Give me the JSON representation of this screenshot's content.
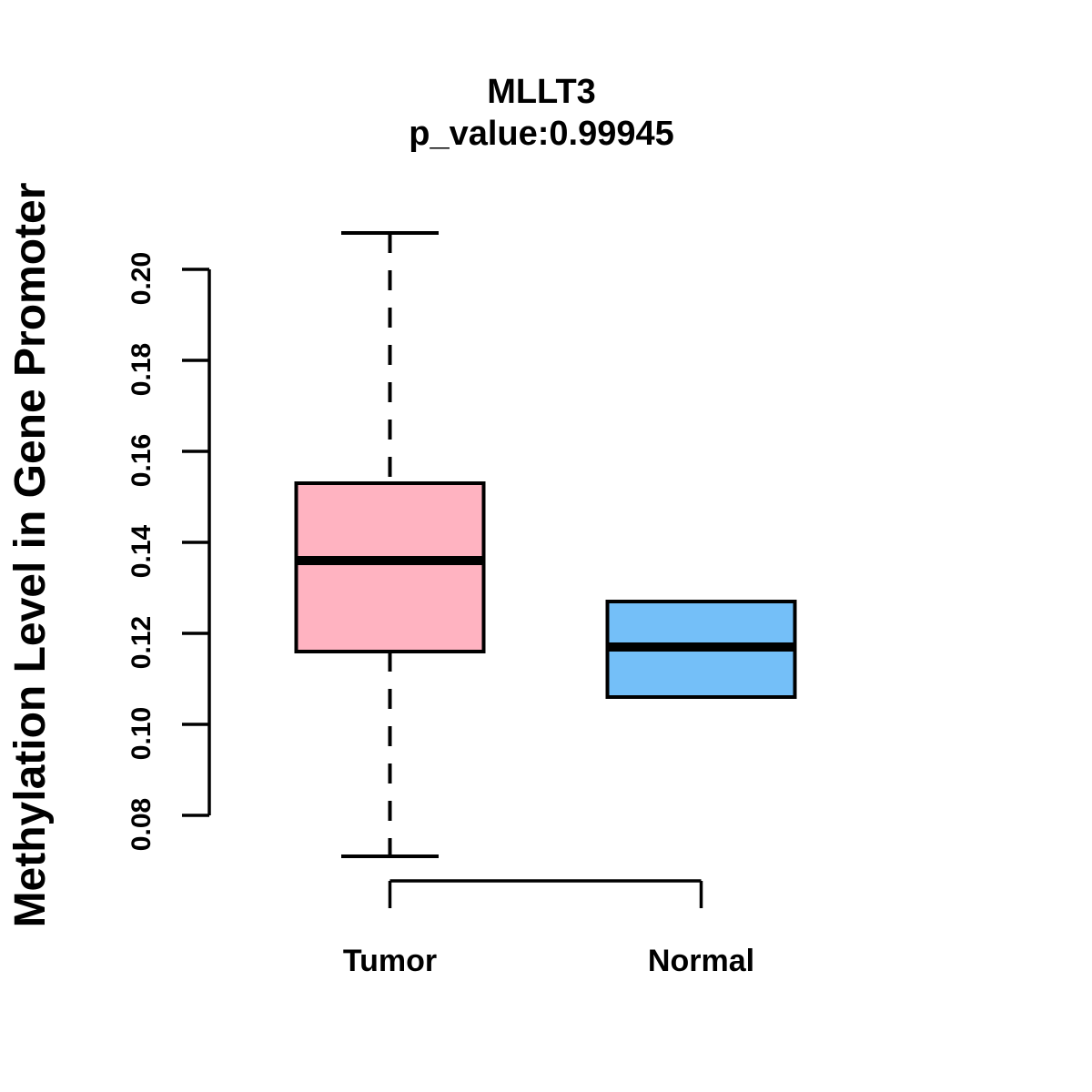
{
  "figure": {
    "background_color": "#ffffff",
    "text_color": "#000000"
  },
  "chart_data": {
    "type": "boxplot",
    "title": "MLLT3",
    "subtitle": "p_value:0.99945",
    "ylabel": "Methylation Level in Gene Promoter",
    "xlabel": "",
    "grid": false,
    "legend": "none",
    "y_ticks": [
      0.08,
      0.1,
      0.12,
      0.14,
      0.16,
      0.18,
      0.2
    ],
    "y_tick_labels": [
      "0.08",
      "0.10",
      "0.12",
      "0.14",
      "0.16",
      "0.18",
      "0.20"
    ],
    "y_axis_range_shown": [
      0.08,
      0.2
    ],
    "data_range": [
      0.071,
      0.208
    ],
    "stroke_color": "#000000",
    "groups": [
      {
        "label": "Tumor",
        "fill_color": "#FFB3C1",
        "stats": {
          "lower_whisker": 0.071,
          "q1": 0.116,
          "median": 0.136,
          "q3": 0.153,
          "upper_whisker": 0.208
        }
      },
      {
        "label": "Normal",
        "fill_color": "#74BFF8",
        "stats": {
          "lower_whisker": 0.106,
          "q1": 0.106,
          "median": 0.117,
          "q3": 0.127,
          "upper_whisker": 0.127
        }
      }
    ]
  }
}
